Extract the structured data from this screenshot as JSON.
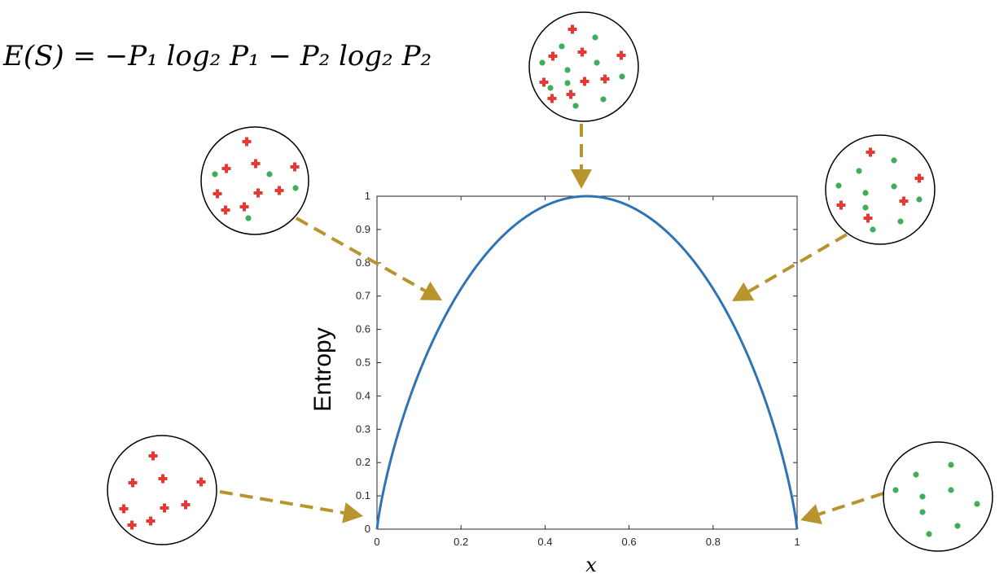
{
  "formula": {
    "lhs": "E(S) = ",
    "term1": "−P₁ log₂ P₁",
    "minus": " − ",
    "term2": "P₂ log₂ P₂",
    "full": "E(S) = −P₁ log₂ P₁ − P₂ log₂ P₂"
  },
  "colors": {
    "curve": "#2E74B5",
    "arrow": "#B8942E",
    "positive": "#E53935",
    "negative": "#3FAE5A",
    "axis": "#262626",
    "circle": "#000000"
  },
  "chart_data": {
    "type": "line",
    "title": "",
    "xlabel": "x",
    "ylabel": "Entropy",
    "xlim": [
      0,
      1
    ],
    "ylim": [
      0,
      1
    ],
    "x_ticks": [
      "0",
      "0.2",
      "0.4",
      "0.6",
      "0.8",
      "1"
    ],
    "y_ticks": [
      "0",
      "0.1",
      "0.2",
      "0.3",
      "0.4",
      "0.5",
      "0.6",
      "0.7",
      "0.8",
      "0.9",
      "1"
    ],
    "grid": false,
    "series": [
      {
        "function": "-x*log2(x)-(1-x)*log2(1-x)",
        "x": [
          0,
          0.01,
          0.02,
          0.05,
          0.1,
          0.15,
          0.2,
          0.25,
          0.3,
          0.35,
          0.4,
          0.45,
          0.5,
          0.55,
          0.6,
          0.65,
          0.7,
          0.75,
          0.8,
          0.85,
          0.9,
          0.95,
          0.98,
          0.99,
          1
        ],
        "y": [
          0,
          0.081,
          0.141,
          0.286,
          0.469,
          0.61,
          0.722,
          0.811,
          0.881,
          0.934,
          0.971,
          0.993,
          1,
          0.993,
          0.971,
          0.934,
          0.881,
          0.811,
          0.722,
          0.61,
          0.469,
          0.286,
          0.141,
          0.081,
          0
        ]
      }
    ],
    "sample_sets": [
      {
        "position": "bottom-left",
        "target_x": 0,
        "positives": 9,
        "negatives": 0
      },
      {
        "position": "upper-left",
        "target_x": 0.16,
        "positives": 10,
        "negatives": 4
      },
      {
        "position": "top-center",
        "target_x": 0.5,
        "positives": 10,
        "negatives": 10
      },
      {
        "position": "upper-right",
        "target_x": 0.84,
        "positives": 4,
        "negatives": 10
      },
      {
        "position": "bottom-right",
        "target_x": 1,
        "positives": 0,
        "negatives": 9
      }
    ]
  }
}
